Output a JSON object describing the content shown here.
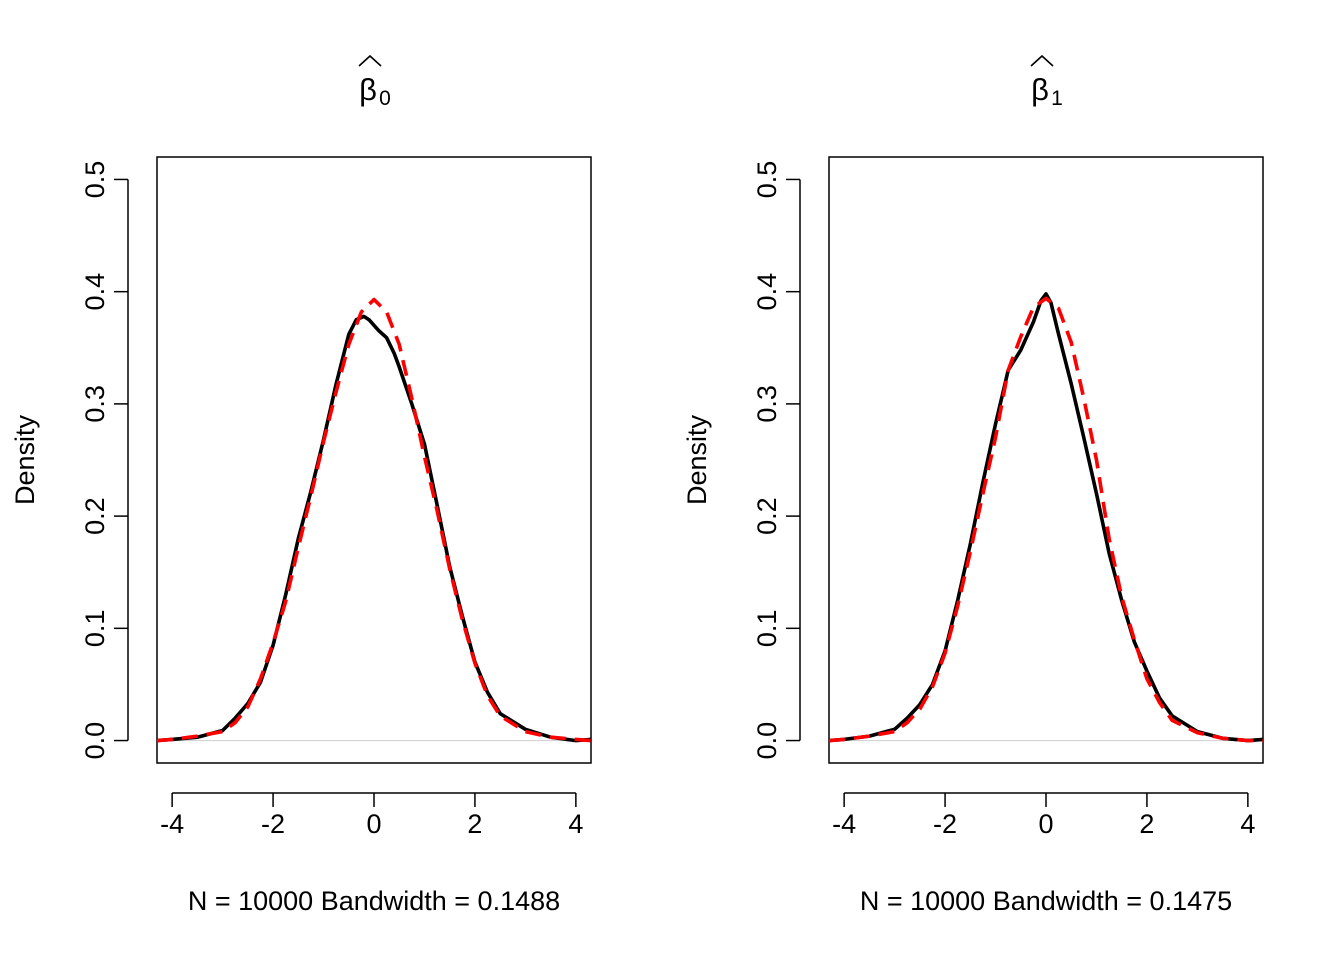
{
  "chart_data": [
    {
      "type": "line",
      "title": "β̂0",
      "title_symbol": "β",
      "title_hat": "^",
      "title_subscript": "0",
      "xlabel": "N = 10000   Bandwidth = 0.1488",
      "ylabel": "Density",
      "xlim": [
        -4.3,
        4.3
      ],
      "ylim": [
        -0.02,
        0.52
      ],
      "xticks": [
        -4,
        -2,
        0,
        2,
        4
      ],
      "xtick_labels": [
        "-4",
        "-2",
        "0",
        "2",
        "4"
      ],
      "yticks": [
        0.0,
        0.1,
        0.2,
        0.3,
        0.4,
        0.5
      ],
      "ytick_labels": [
        "0.0",
        "0.1",
        "0.2",
        "0.3",
        "0.4",
        "0.5"
      ],
      "grid": false,
      "zero_line": true,
      "series": [
        {
          "style": "solid",
          "color": "#000000",
          "x": [
            -4.3,
            -4.0,
            -3.5,
            -3.0,
            -2.75,
            -2.5,
            -2.25,
            -2.0,
            -1.75,
            -1.5,
            -1.25,
            -1.0,
            -0.75,
            -0.5,
            -0.35,
            -0.2,
            -0.1,
            0.0,
            0.1,
            0.25,
            0.4,
            0.5,
            0.75,
            1.0,
            1.25,
            1.5,
            1.75,
            2.0,
            2.25,
            2.5,
            3.0,
            3.5,
            4.0,
            4.3
          ],
          "y": [
            0.0,
            0.001,
            0.003,
            0.009,
            0.02,
            0.033,
            0.052,
            0.085,
            0.13,
            0.18,
            0.222,
            0.268,
            0.318,
            0.362,
            0.375,
            0.378,
            0.375,
            0.37,
            0.365,
            0.359,
            0.345,
            0.333,
            0.3,
            0.264,
            0.21,
            0.155,
            0.111,
            0.07,
            0.043,
            0.024,
            0.01,
            0.003,
            0.0,
            0.001
          ]
        },
        {
          "style": "dashed",
          "color": "#ff0000",
          "x": [
            -4.3,
            -4.0,
            -3.5,
            -3.0,
            -2.75,
            -2.5,
            -2.25,
            -2.0,
            -1.75,
            -1.5,
            -1.25,
            -1.0,
            -0.75,
            -0.5,
            -0.25,
            0.0,
            0.25,
            0.5,
            0.75,
            1.0,
            1.25,
            1.5,
            1.75,
            2.0,
            2.25,
            2.5,
            3.0,
            3.5,
            4.0,
            4.3
          ],
          "y": [
            0.0,
            0.001,
            0.004,
            0.008,
            0.016,
            0.03,
            0.055,
            0.087,
            0.124,
            0.172,
            0.218,
            0.266,
            0.311,
            0.353,
            0.382,
            0.393,
            0.382,
            0.353,
            0.305,
            0.253,
            0.205,
            0.153,
            0.108,
            0.069,
            0.04,
            0.022,
            0.008,
            0.003,
            0.001,
            0.0
          ]
        }
      ]
    },
    {
      "type": "line",
      "title": "β̂1",
      "title_symbol": "β",
      "title_hat": "^",
      "title_subscript": "1",
      "xlabel": "N = 10000   Bandwidth = 0.1475",
      "ylabel": "Density",
      "xlim": [
        -4.3,
        4.3
      ],
      "ylim": [
        -0.02,
        0.52
      ],
      "xticks": [
        -4,
        -2,
        0,
        2,
        4
      ],
      "xtick_labels": [
        "-4",
        "-2",
        "0",
        "2",
        "4"
      ],
      "yticks": [
        0.0,
        0.1,
        0.2,
        0.3,
        0.4,
        0.5
      ],
      "ytick_labels": [
        "0.0",
        "0.1",
        "0.2",
        "0.3",
        "0.4",
        "0.5"
      ],
      "grid": false,
      "zero_line": true,
      "series": [
        {
          "style": "solid",
          "color": "#000000",
          "x": [
            -4.3,
            -4.0,
            -3.5,
            -3.0,
            -2.75,
            -2.5,
            -2.25,
            -2.0,
            -1.75,
            -1.5,
            -1.25,
            -1.0,
            -0.75,
            -0.5,
            -0.25,
            -0.1,
            0.0,
            0.1,
            0.25,
            0.5,
            0.75,
            1.0,
            1.25,
            1.5,
            1.75,
            2.0,
            2.25,
            2.5,
            3.0,
            3.5,
            4.0,
            4.3
          ],
          "y": [
            0.0,
            0.001,
            0.004,
            0.01,
            0.02,
            0.032,
            0.05,
            0.08,
            0.125,
            0.175,
            0.23,
            0.282,
            0.33,
            0.348,
            0.373,
            0.392,
            0.398,
            0.39,
            0.362,
            0.318,
            0.27,
            0.22,
            0.167,
            0.125,
            0.088,
            0.062,
            0.038,
            0.022,
            0.008,
            0.002,
            0.0,
            0.001
          ]
        },
        {
          "style": "dashed",
          "color": "#ff0000",
          "x": [
            -4.3,
            -4.0,
            -3.5,
            -3.0,
            -2.75,
            -2.5,
            -2.25,
            -2.0,
            -1.75,
            -1.5,
            -1.25,
            -1.0,
            -0.75,
            -0.5,
            -0.25,
            0.0,
            0.25,
            0.5,
            0.75,
            1.0,
            1.25,
            1.5,
            1.75,
            2.0,
            2.25,
            2.5,
            3.0,
            3.5,
            4.0,
            4.3
          ],
          "y": [
            0.0,
            0.001,
            0.004,
            0.008,
            0.016,
            0.028,
            0.048,
            0.078,
            0.12,
            0.168,
            0.22,
            0.27,
            0.33,
            0.36,
            0.386,
            0.394,
            0.385,
            0.355,
            0.305,
            0.25,
            0.18,
            0.128,
            0.09,
            0.055,
            0.034,
            0.018,
            0.007,
            0.002,
            0.0,
            0.0
          ]
        }
      ]
    }
  ]
}
